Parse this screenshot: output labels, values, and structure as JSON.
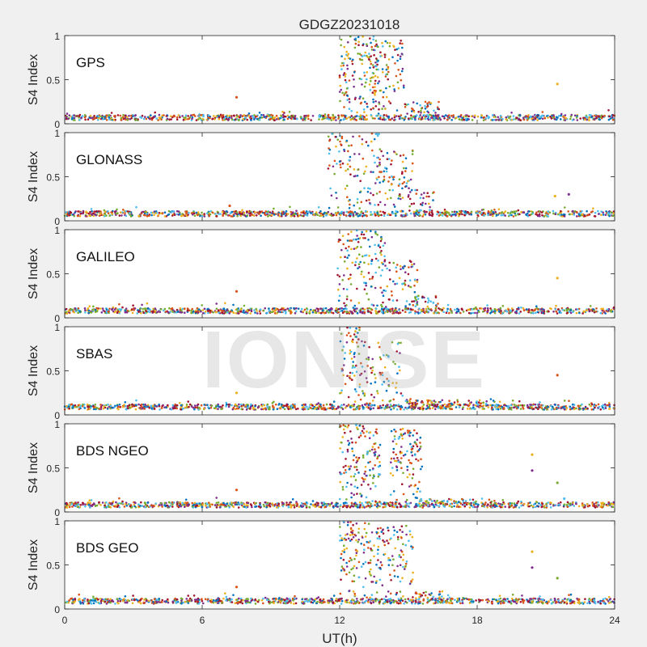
{
  "chart_data": [
    {
      "type": "scatter",
      "title": "GDGZ20231018",
      "panel_label": "GPS",
      "ylabel": "S4 Index",
      "xlabel": "",
      "xlim": [
        0,
        24
      ],
      "ylim": [
        0,
        1
      ],
      "yticks": [
        0,
        0.5,
        1
      ],
      "ytick_labels": [
        "0",
        "0.5",
        "1"
      ],
      "grid": false,
      "background_level": 0.07,
      "bursts": [
        {
          "start": 12.0,
          "end": 13.6,
          "peak": 1.0,
          "density": 140
        },
        {
          "start": 13.4,
          "end": 14.8,
          "peak": 0.95,
          "density": 100
        },
        {
          "start": 14.8,
          "end": 16.5,
          "peak": 0.25,
          "density": 35
        }
      ],
      "outliers": [
        {
          "x": 7.5,
          "y": 0.3
        },
        {
          "x": 21.5,
          "y": 0.45
        }
      ]
    },
    {
      "type": "scatter",
      "panel_label": "GLONASS",
      "ylabel": "S4 Index",
      "xlim": [
        0,
        24
      ],
      "ylim": [
        0,
        1
      ],
      "yticks": [
        0,
        0.5,
        1
      ],
      "ytick_labels": [
        "0",
        "0.5",
        "1"
      ],
      "grid": false,
      "background_level": 0.08,
      "bursts": [
        {
          "start": 11.5,
          "end": 13.8,
          "peak": 1.0,
          "density": 120
        },
        {
          "start": 13.6,
          "end": 15.2,
          "peak": 0.8,
          "density": 80
        },
        {
          "start": 15.0,
          "end": 16.2,
          "peak": 0.35,
          "density": 30
        }
      ],
      "outliers": [
        {
          "x": 7.2,
          "y": 0.17
        },
        {
          "x": 21.4,
          "y": 0.28
        },
        {
          "x": 22.0,
          "y": 0.3
        }
      ]
    },
    {
      "type": "scatter",
      "panel_label": "GALILEO",
      "ylabel": "S4 Index",
      "xlim": [
        0,
        24
      ],
      "ylim": [
        0,
        1
      ],
      "yticks": [
        0,
        0.5,
        1
      ],
      "ytick_labels": [
        "0",
        "0.5",
        "1"
      ],
      "grid": false,
      "background_level": 0.08,
      "bursts": [
        {
          "start": 11.9,
          "end": 14.0,
          "peak": 1.0,
          "density": 130
        },
        {
          "start": 13.8,
          "end": 15.4,
          "peak": 0.65,
          "density": 70
        },
        {
          "start": 15.2,
          "end": 16.3,
          "peak": 0.25,
          "density": 25
        }
      ],
      "outliers": [
        {
          "x": 7.5,
          "y": 0.3
        },
        {
          "x": 21.5,
          "y": 0.45
        }
      ]
    },
    {
      "type": "scatter",
      "panel_label": "SBAS",
      "ylabel": "S4 Index",
      "xlim": [
        0,
        24
      ],
      "ylim": [
        0,
        1
      ],
      "yticks": [
        0,
        0.5,
        1
      ],
      "ytick_labels": [
        "0",
        "0.5",
        "1"
      ],
      "grid": false,
      "background_level": 0.09,
      "bursts": [
        {
          "start": 12.0,
          "end": 13.0,
          "peak": 1.0,
          "density": 70
        },
        {
          "start": 13.0,
          "end": 14.8,
          "peak": 0.85,
          "density": 70
        },
        {
          "start": 14.8,
          "end": 18.8,
          "peak": 0.18,
          "density": 60
        }
      ],
      "outliers": [
        {
          "x": 21.5,
          "y": 0.45
        },
        {
          "x": 7.5,
          "y": 0.25
        }
      ]
    },
    {
      "type": "scatter",
      "panel_label": "BDS NGEO",
      "ylabel": "S4 Index",
      "xlim": [
        0,
        24
      ],
      "ylim": [
        0,
        1
      ],
      "yticks": [
        0,
        0.5,
        1
      ],
      "ytick_labels": [
        "0",
        "0.5",
        "1"
      ],
      "grid": false,
      "background_level": 0.08,
      "bursts": [
        {
          "start": 12.0,
          "end": 13.8,
          "peak": 1.0,
          "density": 150
        },
        {
          "start": 14.2,
          "end": 15.6,
          "peak": 0.95,
          "density": 110
        },
        {
          "start": 15.5,
          "end": 18.0,
          "peak": 0.15,
          "density": 30
        }
      ],
      "outliers": [
        {
          "x": 7.5,
          "y": 0.25
        },
        {
          "x": 20.4,
          "y": 0.65
        },
        {
          "x": 20.4,
          "y": 0.47
        },
        {
          "x": 21.5,
          "y": 0.33
        },
        {
          "x": 21.8,
          "y": 0.15
        }
      ]
    },
    {
      "type": "scatter",
      "panel_label": "BDS GEO",
      "ylabel": "S4 Index",
      "xlabel": "UT(h)",
      "xlim": [
        0,
        24
      ],
      "ylim": [
        0,
        1
      ],
      "xticks": [
        0,
        6,
        12,
        18,
        24
      ],
      "xtick_labels": [
        "0",
        "6",
        "12",
        "18",
        "24"
      ],
      "yticks": [
        0,
        0.5,
        1
      ],
      "ytick_labels": [
        "0",
        "0.5",
        "1"
      ],
      "grid": false,
      "background_level": 0.09,
      "bursts": [
        {
          "start": 12.0,
          "end": 13.4,
          "peak": 1.0,
          "density": 110
        },
        {
          "start": 13.4,
          "end": 15.2,
          "peak": 0.95,
          "density": 110
        },
        {
          "start": 15.2,
          "end": 16.5,
          "peak": 0.2,
          "density": 25
        }
      ],
      "outliers": [
        {
          "x": 7.5,
          "y": 0.25
        },
        {
          "x": 20.4,
          "y": 0.65
        },
        {
          "x": 20.4,
          "y": 0.47
        },
        {
          "x": 21.5,
          "y": 0.35
        }
      ]
    }
  ],
  "series_colors": [
    "#0072BD",
    "#D95319",
    "#EDB120",
    "#7E2F8E",
    "#77AC30",
    "#4DBEEE",
    "#A2142F"
  ],
  "watermark": "IONISE"
}
